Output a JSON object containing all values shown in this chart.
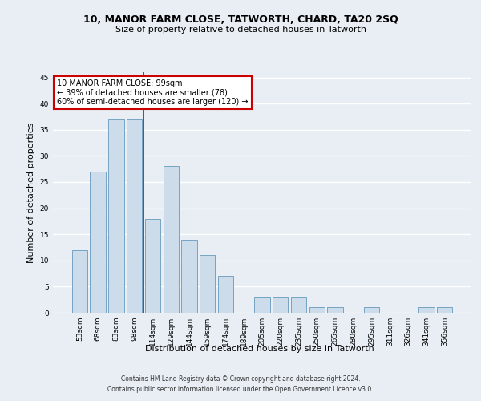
{
  "title": "10, MANOR FARM CLOSE, TATWORTH, CHARD, TA20 2SQ",
  "subtitle": "Size of property relative to detached houses in Tatworth",
  "xlabel": "Distribution of detached houses by size in Tatworth",
  "ylabel": "Number of detached properties",
  "categories": [
    "53sqm",
    "68sqm",
    "83sqm",
    "98sqm",
    "114sqm",
    "129sqm",
    "144sqm",
    "159sqm",
    "174sqm",
    "189sqm",
    "205sqm",
    "220sqm",
    "235sqm",
    "250sqm",
    "265sqm",
    "280sqm",
    "295sqm",
    "311sqm",
    "326sqm",
    "341sqm",
    "356sqm"
  ],
  "values": [
    12,
    27,
    37,
    37,
    18,
    28,
    14,
    11,
    7,
    0,
    3,
    3,
    3,
    1,
    1,
    0,
    1,
    0,
    0,
    1,
    1
  ],
  "bar_color": "#ccdcea",
  "bar_edge_color": "#6699bb",
  "vline_color": "#cc0000",
  "annotation_text": "10 MANOR FARM CLOSE: 99sqm\n← 39% of detached houses are smaller (78)\n60% of semi-detached houses are larger (120) →",
  "annotation_box_color": "#ffffff",
  "annotation_box_edge": "#cc0000",
  "ylim": [
    0,
    46
  ],
  "yticks": [
    0,
    5,
    10,
    15,
    20,
    25,
    30,
    35,
    40,
    45
  ],
  "footer1": "Contains HM Land Registry data © Crown copyright and database right 2024.",
  "footer2": "Contains public sector information licensed under the Open Government Licence v3.0.",
  "bg_color": "#e8eef4",
  "plot_bg_color": "#e8eef4",
  "grid_color": "#ffffff",
  "title_fontsize": 9,
  "subtitle_fontsize": 8,
  "ylabel_fontsize": 8,
  "xlabel_fontsize": 8,
  "tick_fontsize": 6.5,
  "footer_fontsize": 5.5
}
